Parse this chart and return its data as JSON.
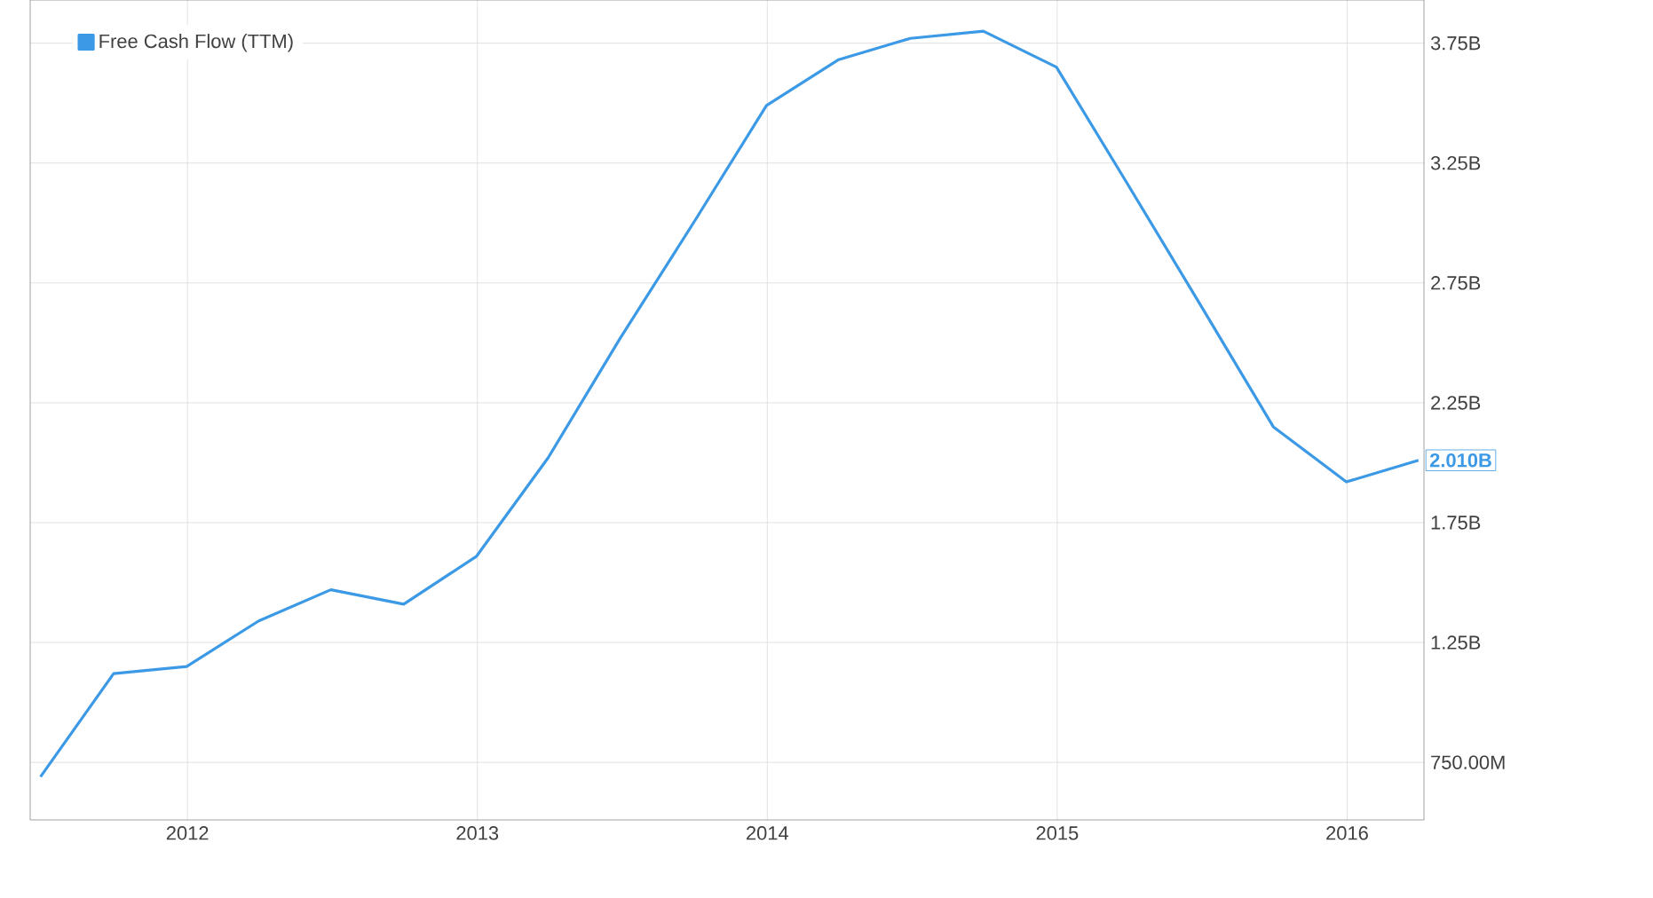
{
  "chart_data": {
    "type": "line",
    "x": [
      "2011-06-30",
      "2011-09-30",
      "2011-12-31",
      "2012-03-31",
      "2012-06-30",
      "2012-09-30",
      "2012-12-31",
      "2013-03-31",
      "2013-06-30",
      "2013-09-30",
      "2013-12-31",
      "2014-03-31",
      "2014-06-30",
      "2014-09-30",
      "2014-12-31",
      "2015-03-31",
      "2015-06-30",
      "2015-09-30",
      "2015-12-31",
      "2016-03-31"
    ],
    "series": [
      {
        "name": "Free Cash Flow (TTM)",
        "color": "#3b99e6",
        "values": [
          690000000,
          1120000000,
          1150000000,
          1340000000,
          1470000000,
          1410000000,
          1610000000,
          2020000000,
          2520000000,
          3000000000,
          3490000000,
          3680000000,
          3770000000,
          3800000000,
          3650000000,
          3160000000,
          2660000000,
          2150000000,
          1920000000,
          2010000000
        ],
        "value_labels": [
          null,
          null,
          null,
          null,
          null,
          null,
          null,
          null,
          null,
          null,
          null,
          null,
          null,
          null,
          null,
          null,
          null,
          null,
          null,
          "2.010B"
        ]
      }
    ],
    "xlim": [
      "2011-06-17",
      "2016-04-07"
    ],
    "ylim": [
      510000000,
      3930000000
    ],
    "xticks": [
      "2012",
      "2013",
      "2014",
      "2015",
      "2016"
    ],
    "yticks": [
      {
        "value": 750000000,
        "label": "750.00M"
      },
      {
        "value": 1250000000,
        "label": "1.25B"
      },
      {
        "value": 1750000000,
        "label": "1.75B"
      },
      {
        "value": 2250000000,
        "label": "2.25B"
      },
      {
        "value": 2750000000,
        "label": "2.75B"
      },
      {
        "value": 3250000000,
        "label": "3.25B"
      },
      {
        "value": 3750000000,
        "label": "3.75B"
      }
    ],
    "grid": true,
    "legend": "top left",
    "marker": "none",
    "line_style": "solid"
  }
}
